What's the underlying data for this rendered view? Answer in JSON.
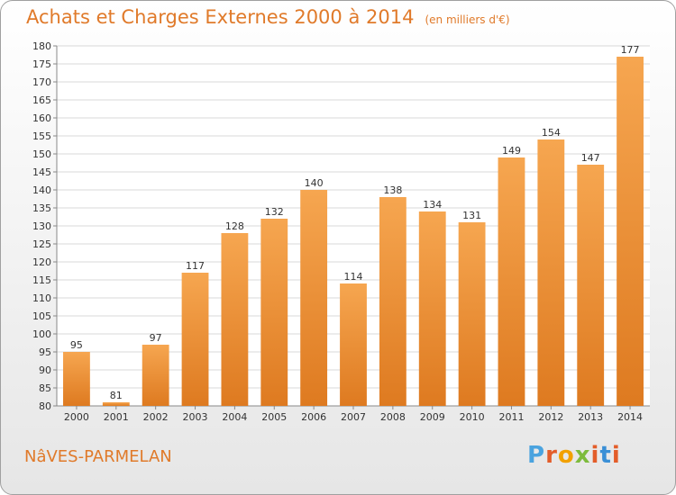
{
  "header": {
    "title": "Achats et Charges Externes 2000 à 2014",
    "subtitle": "(en milliers d'€)"
  },
  "footer": {
    "commune": "NâVES-PARMELAN",
    "logo_text": "Proxiti"
  },
  "colors": {
    "accent": "#e07a2a",
    "bar_top": "#f6a650",
    "bar_bottom": "#de7a20",
    "logo_letters": [
      "#4aa3df",
      "#e35d2a",
      "#f2a100",
      "#7dbb3c",
      "#e35d2a",
      "#3a8fd6",
      "#e35d2a"
    ]
  },
  "chart_data": {
    "type": "bar",
    "categories": [
      "2000",
      "2001",
      "2002",
      "2003",
      "2004",
      "2005",
      "2006",
      "2007",
      "2008",
      "2009",
      "2010",
      "2011",
      "2012",
      "2013",
      "2014"
    ],
    "values": [
      95,
      81,
      97,
      117,
      128,
      132,
      140,
      114,
      138,
      134,
      131,
      149,
      154,
      147,
      177
    ],
    "ylim": [
      80,
      180
    ],
    "ytick_step": 5,
    "grid": true
  }
}
